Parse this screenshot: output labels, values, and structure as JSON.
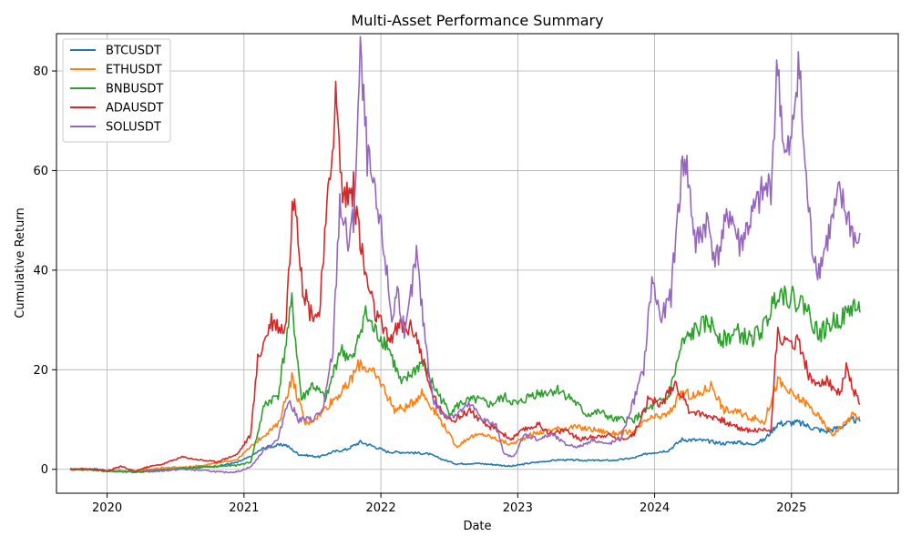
{
  "chart_data": {
    "type": "line",
    "title": "Multi-Asset Performance Summary",
    "xlabel": "Date",
    "ylabel": "Cumulative Return",
    "xlim": [
      2019.63,
      2025.78
    ],
    "ylim": [
      -4.8,
      87.5
    ],
    "x_ticks": [
      2020,
      2021,
      2022,
      2023,
      2024,
      2025
    ],
    "x_tick_labels": [
      "2020",
      "2021",
      "2022",
      "2023",
      "2024",
      "2025"
    ],
    "y_ticks": [
      0,
      20,
      40,
      60,
      80
    ],
    "y_tick_labels": [
      "0",
      "20",
      "40",
      "60",
      "80"
    ],
    "grid": true,
    "legend_position": "top-left",
    "series": [
      {
        "name": "BTCUSDT",
        "color": "#1f77b4",
        "points": [
          [
            2019.73,
            0
          ],
          [
            2019.9,
            0.1
          ],
          [
            2020.0,
            -0.2
          ],
          [
            2020.2,
            -0.4
          ],
          [
            2020.4,
            -0.1
          ],
          [
            2020.6,
            0.3
          ],
          [
            2020.8,
            0.6
          ],
          [
            2020.95,
            1.4
          ],
          [
            2021.05,
            2.6
          ],
          [
            2021.15,
            4.4
          ],
          [
            2021.3,
            5.0
          ],
          [
            2021.4,
            3.0
          ],
          [
            2021.55,
            2.5
          ],
          [
            2021.65,
            3.5
          ],
          [
            2021.75,
            4.0
          ],
          [
            2021.85,
            5.5
          ],
          [
            2021.95,
            4.6
          ],
          [
            2022.05,
            3.5
          ],
          [
            2022.2,
            3.4
          ],
          [
            2022.35,
            3.1
          ],
          [
            2022.45,
            2.0
          ],
          [
            2022.55,
            1.1
          ],
          [
            2022.7,
            1.2
          ],
          [
            2022.85,
            0.9
          ],
          [
            2022.95,
            0.6
          ],
          [
            2023.1,
            1.3
          ],
          [
            2023.3,
            1.9
          ],
          [
            2023.5,
            1.8
          ],
          [
            2023.7,
            1.8
          ],
          [
            2023.85,
            2.3
          ],
          [
            2023.95,
            3.2
          ],
          [
            2024.1,
            3.8
          ],
          [
            2024.2,
            6.0
          ],
          [
            2024.35,
            5.8
          ],
          [
            2024.5,
            5.2
          ],
          [
            2024.6,
            5.5
          ],
          [
            2024.7,
            5.0
          ],
          [
            2024.8,
            5.9
          ],
          [
            2024.9,
            9.2
          ],
          [
            2025.05,
            9.4
          ],
          [
            2025.15,
            8.4
          ],
          [
            2025.25,
            7.6
          ],
          [
            2025.35,
            8.4
          ],
          [
            2025.45,
            10.0
          ],
          [
            2025.5,
            9.6
          ]
        ]
      },
      {
        "name": "ETHUSDT",
        "color": "#ff7f0e",
        "points": [
          [
            2019.73,
            0
          ],
          [
            2019.9,
            -0.1
          ],
          [
            2020.0,
            -0.3
          ],
          [
            2020.2,
            -0.4
          ],
          [
            2020.4,
            0.3
          ],
          [
            2020.6,
            0.5
          ],
          [
            2020.8,
            1.2
          ],
          [
            2020.95,
            2.0
          ],
          [
            2021.05,
            4.5
          ],
          [
            2021.15,
            7.0
          ],
          [
            2021.25,
            9.0
          ],
          [
            2021.35,
            18.5
          ],
          [
            2021.45,
            9.0
          ],
          [
            2021.55,
            11.0
          ],
          [
            2021.65,
            14.0
          ],
          [
            2021.75,
            16.5
          ],
          [
            2021.85,
            21.5
          ],
          [
            2021.95,
            19.0
          ],
          [
            2022.0,
            17.5
          ],
          [
            2022.1,
            12.0
          ],
          [
            2022.2,
            12.5
          ],
          [
            2022.3,
            15.5
          ],
          [
            2022.4,
            11.5
          ],
          [
            2022.48,
            8.0
          ],
          [
            2022.55,
            4.5
          ],
          [
            2022.65,
            6.5
          ],
          [
            2022.75,
            7.0
          ],
          [
            2022.85,
            6.0
          ],
          [
            2022.95,
            5.0
          ],
          [
            2023.1,
            7.0
          ],
          [
            2023.25,
            8.0
          ],
          [
            2023.4,
            8.5
          ],
          [
            2023.55,
            8.0
          ],
          [
            2023.7,
            7.2
          ],
          [
            2023.85,
            7.5
          ],
          [
            2023.95,
            10.0
          ],
          [
            2024.1,
            11.0
          ],
          [
            2024.2,
            15.5
          ],
          [
            2024.3,
            14.5
          ],
          [
            2024.42,
            17.0
          ],
          [
            2024.5,
            12.0
          ],
          [
            2024.6,
            11.5
          ],
          [
            2024.7,
            10.5
          ],
          [
            2024.8,
            9.5
          ],
          [
            2024.9,
            17.8
          ],
          [
            2025.0,
            15.0
          ],
          [
            2025.1,
            13.5
          ],
          [
            2025.2,
            10.5
          ],
          [
            2025.3,
            7.0
          ],
          [
            2025.38,
            9.0
          ],
          [
            2025.45,
            11.0
          ],
          [
            2025.5,
            10.5
          ]
        ]
      },
      {
        "name": "BNBUSDT",
        "color": "#2ca02c",
        "points": [
          [
            2019.73,
            0
          ],
          [
            2019.9,
            -0.1
          ],
          [
            2020.0,
            -0.4
          ],
          [
            2020.2,
            -0.6
          ],
          [
            2020.4,
            -0.2
          ],
          [
            2020.6,
            0.3
          ],
          [
            2020.8,
            0.6
          ],
          [
            2020.95,
            0.8
          ],
          [
            2021.05,
            1.5
          ],
          [
            2021.15,
            13.0
          ],
          [
            2021.25,
            15.0
          ],
          [
            2021.35,
            33.5
          ],
          [
            2021.42,
            14.0
          ],
          [
            2021.5,
            17.0
          ],
          [
            2021.6,
            14.0
          ],
          [
            2021.7,
            24.0
          ],
          [
            2021.8,
            22.0
          ],
          [
            2021.88,
            31.5
          ],
          [
            2021.95,
            28.0
          ],
          [
            2022.05,
            25.0
          ],
          [
            2022.15,
            17.0
          ],
          [
            2022.3,
            21.5
          ],
          [
            2022.4,
            16.0
          ],
          [
            2022.5,
            11.5
          ],
          [
            2022.6,
            13.5
          ],
          [
            2022.7,
            14.0
          ],
          [
            2022.8,
            13.0
          ],
          [
            2022.9,
            14.5
          ],
          [
            2023.0,
            13.0
          ],
          [
            2023.1,
            15.0
          ],
          [
            2023.2,
            15.5
          ],
          [
            2023.3,
            16.0
          ],
          [
            2023.4,
            14.0
          ],
          [
            2023.5,
            11.0
          ],
          [
            2023.6,
            11.5
          ],
          [
            2023.7,
            10.0
          ],
          [
            2023.85,
            10.0
          ],
          [
            2023.95,
            12.0
          ],
          [
            2024.1,
            14.5
          ],
          [
            2024.2,
            25.0
          ],
          [
            2024.3,
            28.0
          ],
          [
            2024.4,
            29.5
          ],
          [
            2024.5,
            26.0
          ],
          [
            2024.6,
            27.5
          ],
          [
            2024.7,
            26.0
          ],
          [
            2024.8,
            28.5
          ],
          [
            2024.9,
            36.0
          ],
          [
            2025.0,
            34.5
          ],
          [
            2025.1,
            33.0
          ],
          [
            2025.2,
            27.0
          ],
          [
            2025.3,
            29.5
          ],
          [
            2025.4,
            31.0
          ],
          [
            2025.45,
            33.0
          ],
          [
            2025.5,
            31.5
          ]
        ]
      },
      {
        "name": "ADAUSDT",
        "color": "#d62728",
        "points": [
          [
            2019.73,
            0
          ],
          [
            2019.9,
            0.1
          ],
          [
            2020.0,
            -0.4
          ],
          [
            2020.1,
            0.6
          ],
          [
            2020.2,
            -0.4
          ],
          [
            2020.3,
            0.5
          ],
          [
            2020.4,
            1.0
          ],
          [
            2020.55,
            2.5
          ],
          [
            2020.65,
            2.0
          ],
          [
            2020.8,
            1.5
          ],
          [
            2020.95,
            3.0
          ],
          [
            2021.05,
            7.0
          ],
          [
            2021.1,
            22.0
          ],
          [
            2021.2,
            30.0
          ],
          [
            2021.3,
            28.0
          ],
          [
            2021.37,
            58.0
          ],
          [
            2021.42,
            38.0
          ],
          [
            2021.48,
            32.0
          ],
          [
            2021.55,
            31.0
          ],
          [
            2021.63,
            60.0
          ],
          [
            2021.67,
            75.0
          ],
          [
            2021.72,
            55.0
          ],
          [
            2021.8,
            56.0
          ],
          [
            2021.88,
            40.0
          ],
          [
            2021.95,
            32.0
          ],
          [
            2022.05,
            26.0
          ],
          [
            2022.15,
            29.0
          ],
          [
            2022.25,
            28.0
          ],
          [
            2022.35,
            17.0
          ],
          [
            2022.45,
            11.0
          ],
          [
            2022.55,
            10.0
          ],
          [
            2022.65,
            12.0
          ],
          [
            2022.75,
            9.0
          ],
          [
            2022.85,
            8.0
          ],
          [
            2022.95,
            6.0
          ],
          [
            2023.05,
            8.0
          ],
          [
            2023.15,
            9.0
          ],
          [
            2023.25,
            7.0
          ],
          [
            2023.35,
            8.0
          ],
          [
            2023.45,
            6.0
          ],
          [
            2023.55,
            6.5
          ],
          [
            2023.65,
            7.0
          ],
          [
            2023.75,
            6.0
          ],
          [
            2023.85,
            7.0
          ],
          [
            2023.95,
            14.0
          ],
          [
            2024.05,
            13.0
          ],
          [
            2024.15,
            17.5
          ],
          [
            2024.25,
            12.0
          ],
          [
            2024.35,
            11.0
          ],
          [
            2024.45,
            10.5
          ],
          [
            2024.55,
            9.0
          ],
          [
            2024.65,
            8.0
          ],
          [
            2024.75,
            7.8
          ],
          [
            2024.85,
            8.0
          ],
          [
            2024.9,
            29.0
          ],
          [
            2024.95,
            25.0
          ],
          [
            2025.05,
            26.0
          ],
          [
            2025.15,
            17.0
          ],
          [
            2025.25,
            18.0
          ],
          [
            2025.35,
            15.0
          ],
          [
            2025.4,
            20.0
          ],
          [
            2025.45,
            16.0
          ],
          [
            2025.5,
            13.0
          ]
        ]
      },
      {
        "name": "SOLUSDT",
        "color": "#9467bd",
        "points": [
          [
            2020.28,
            -0.5
          ],
          [
            2020.4,
            -0.3
          ],
          [
            2020.55,
            0.0
          ],
          [
            2020.7,
            -0.2
          ],
          [
            2020.85,
            -0.6
          ],
          [
            2020.95,
            -0.5
          ],
          [
            2021.05,
            0.5
          ],
          [
            2021.15,
            4.0
          ],
          [
            2021.25,
            6.0
          ],
          [
            2021.32,
            14.0
          ],
          [
            2021.4,
            10.0
          ],
          [
            2021.5,
            10.0
          ],
          [
            2021.58,
            12.0
          ],
          [
            2021.65,
            24.0
          ],
          [
            2021.7,
            54.0
          ],
          [
            2021.76,
            45.0
          ],
          [
            2021.8,
            50.0
          ],
          [
            2021.85,
            82.5
          ],
          [
            2021.9,
            63.0
          ],
          [
            2021.95,
            55.0
          ],
          [
            2022.02,
            45.0
          ],
          [
            2022.08,
            30.0
          ],
          [
            2022.12,
            36.0
          ],
          [
            2022.18,
            27.0
          ],
          [
            2022.26,
            43.0
          ],
          [
            2022.3,
            32.0
          ],
          [
            2022.38,
            14.0
          ],
          [
            2022.45,
            11.0
          ],
          [
            2022.55,
            11.0
          ],
          [
            2022.65,
            13.0
          ],
          [
            2022.75,
            10.0
          ],
          [
            2022.85,
            8.5
          ],
          [
            2022.9,
            3.0
          ],
          [
            2022.97,
            2.5
          ],
          [
            2023.05,
            7.0
          ],
          [
            2023.15,
            6.0
          ],
          [
            2023.25,
            7.0
          ],
          [
            2023.35,
            5.0
          ],
          [
            2023.45,
            4.5
          ],
          [
            2023.55,
            6.0
          ],
          [
            2023.65,
            5.0
          ],
          [
            2023.75,
            6.0
          ],
          [
            2023.85,
            14.0
          ],
          [
            2023.92,
            20.0
          ],
          [
            2023.98,
            38.0
          ],
          [
            2024.05,
            30.0
          ],
          [
            2024.12,
            35.0
          ],
          [
            2024.18,
            55.0
          ],
          [
            2024.22,
            64.0
          ],
          [
            2024.3,
            45.0
          ],
          [
            2024.38,
            50.0
          ],
          [
            2024.45,
            42.0
          ],
          [
            2024.55,
            52.0
          ],
          [
            2024.62,
            45.0
          ],
          [
            2024.7,
            50.0
          ],
          [
            2024.78,
            55.0
          ],
          [
            2024.85,
            57.0
          ],
          [
            2024.9,
            82.0
          ],
          [
            2024.95,
            62.0
          ],
          [
            2025.0,
            65.0
          ],
          [
            2025.05,
            83.5
          ],
          [
            2025.1,
            60.0
          ],
          [
            2025.15,
            45.0
          ],
          [
            2025.2,
            40.0
          ],
          [
            2025.28,
            48.0
          ],
          [
            2025.35,
            55.0
          ],
          [
            2025.42,
            50.0
          ],
          [
            2025.48,
            45.0
          ],
          [
            2025.5,
            47.5
          ]
        ]
      }
    ]
  }
}
